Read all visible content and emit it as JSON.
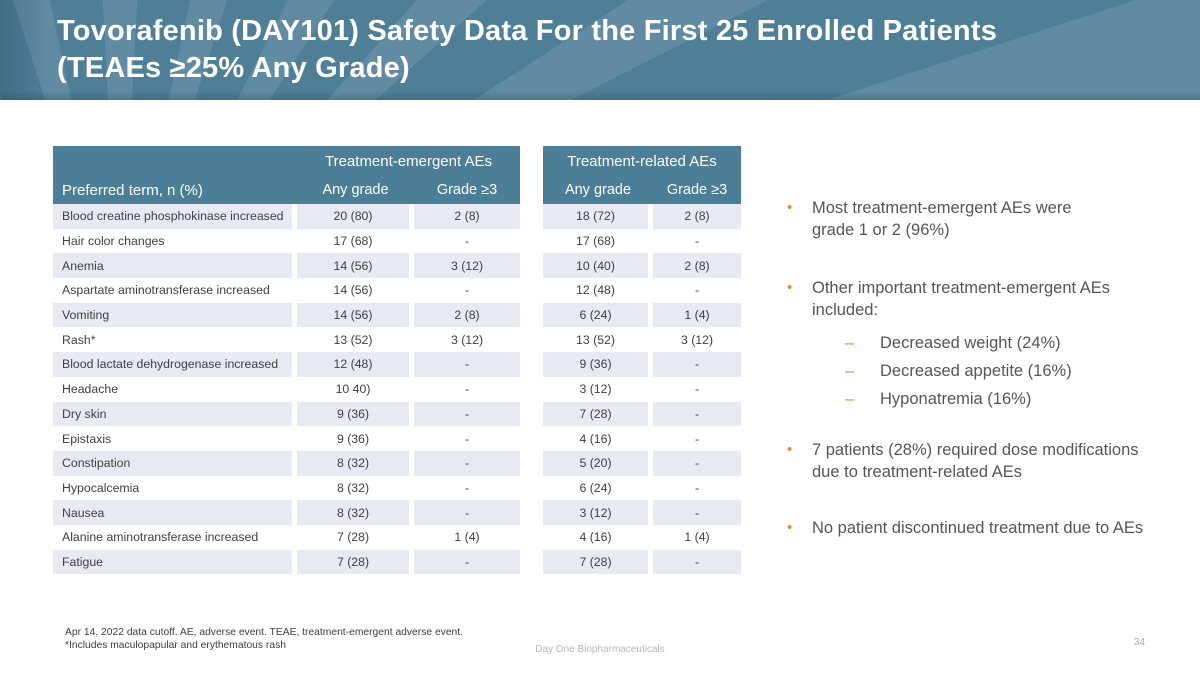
{
  "slide": {
    "title_line1": "Tovorafenib (DAY101) Safety Data For the First 25 Enrolled Patients",
    "title_line2": "(TEAEs ≥25% Any Grade)",
    "page_number": "34",
    "footer_brand": "Day One Biopharmaceuticals",
    "footnote_line1": "Apr 14, 2022 data cutoff. AE, adverse event. TEAE, treatment-emergent adverse event.",
    "footnote_line2": "*Includes maculopapular and erythematous rash"
  },
  "icons": {
    "bullet_dot": "•",
    "sub_dash": "–"
  },
  "table": {
    "group_header_emergent": "Treatment-emergent AEs",
    "group_header_related": "Treatment-related AEs",
    "row_header": "Preferred term, n (%)",
    "col_any_grade": "Any grade",
    "col_grade3": "Grade ≥3",
    "rows": [
      {
        "term": "Blood creatine phosphokinase increased",
        "te_any": "20 (80)",
        "te_g3": "2 (8)",
        "tr_any": "18 (72)",
        "tr_g3": "2 (8)"
      },
      {
        "term": "Hair color changes",
        "te_any": "17 (68)",
        "te_g3": "-",
        "tr_any": "17 (68)",
        "tr_g3": "-"
      },
      {
        "term": "Anemia",
        "te_any": "14 (56)",
        "te_g3": "3 (12)",
        "tr_any": "10 (40)",
        "tr_g3": "2 (8)"
      },
      {
        "term": "Aspartate aminotransferase increased",
        "te_any": "14 (56)",
        "te_g3": "-",
        "tr_any": "12 (48)",
        "tr_g3": "-"
      },
      {
        "term": "Vomiting",
        "te_any": "14 (56)",
        "te_g3": "2 (8)",
        "tr_any": "6 (24)",
        "tr_g3": "1 (4)"
      },
      {
        "term": "Rash*",
        "te_any": "13 (52)",
        "te_g3": "3 (12)",
        "tr_any": "13 (52)",
        "tr_g3": "3 (12)"
      },
      {
        "term": "Blood lactate dehydrogenase increased",
        "te_any": "12 (48)",
        "te_g3": "-",
        "tr_any": "9 (36)",
        "tr_g3": "-"
      },
      {
        "term": "Headache",
        "te_any": "10 40)",
        "te_g3": "-",
        "tr_any": "3 (12)",
        "tr_g3": "-"
      },
      {
        "term": "Dry skin",
        "te_any": "9 (36)",
        "te_g3": "-",
        "tr_any": "7 (28)",
        "tr_g3": "-"
      },
      {
        "term": "Epistaxis",
        "te_any": "9 (36)",
        "te_g3": "-",
        "tr_any": "4 (16)",
        "tr_g3": "-"
      },
      {
        "term": "Constipation",
        "te_any": "8 (32)",
        "te_g3": "-",
        "tr_any": "5 (20)",
        "tr_g3": "-"
      },
      {
        "term": "Hypocalcemia",
        "te_any": "8 (32)",
        "te_g3": "-",
        "tr_any": "6 (24)",
        "tr_g3": "-"
      },
      {
        "term": "Nausea",
        "te_any": "8 (32)",
        "te_g3": "-",
        "tr_any": "3 (12)",
        "tr_g3": "-"
      },
      {
        "term": "Alanine aminotransferase increased",
        "te_any": "7 (28)",
        "te_g3": "1 (4)",
        "tr_any": "4 (16)",
        "tr_g3": "1 (4)"
      },
      {
        "term": "Fatigue",
        "te_any": "7 (28)",
        "te_g3": "-",
        "tr_any": "7 (28)",
        "tr_g3": "-"
      }
    ]
  },
  "bullets": [
    {
      "lines": [
        "Most treatment-emergent AEs were",
        "grade 1 or 2 (96%)"
      ],
      "sub": []
    },
    {
      "lines": [
        "Other important treatment-emergent AEs",
        "included:"
      ],
      "sub": [
        "Decreased weight (24%)",
        "Decreased appetite (16%)",
        "Hyponatremia (16%)"
      ]
    },
    {
      "lines": [
        "7 patients (28%) required dose modifications",
        "due to treatment-related AEs"
      ],
      "sub": []
    },
    {
      "lines": [
        "No patient discontinued treatment due to AEs"
      ],
      "sub": []
    }
  ],
  "colors": {
    "band_teal": "#4F7E97",
    "table_teal": "#4C7E98",
    "row_stripe": "#E7EAF2",
    "bullet_orange": "#E08A3E"
  }
}
